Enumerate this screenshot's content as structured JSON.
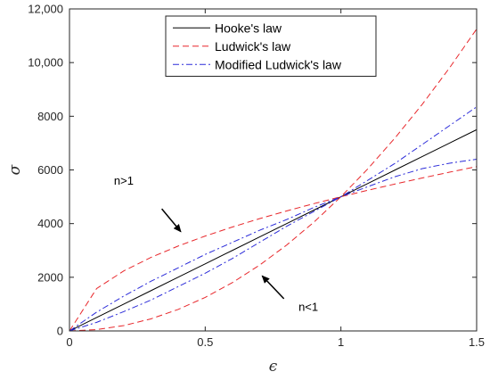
{
  "chart_data": {
    "type": "line",
    "xlabel": "ϵ",
    "ylabel": "σ",
    "xlim": [
      0,
      1.5
    ],
    "ylim": [
      0,
      12000
    ],
    "xticks": [
      0,
      0.5,
      1,
      1.5
    ],
    "xtick_labels": [
      "0",
      "0.5",
      "1",
      "1.5"
    ],
    "yticks": [
      0,
      2000,
      4000,
      6000,
      8000,
      10000,
      12000
    ],
    "ytick_labels": [
      "0",
      "2000",
      "4000",
      "6000",
      "8000",
      "10,000",
      "12,000"
    ],
    "grid": false,
    "legend_position": "top-center",
    "series": [
      {
        "name": "Hooke's law",
        "color": "#000000",
        "dash": "solid",
        "x": [
          0,
          0.1,
          0.2,
          0.3,
          0.4,
          0.5,
          0.6,
          0.7,
          0.8,
          0.9,
          1.0,
          1.1,
          1.2,
          1.3,
          1.4,
          1.5
        ],
        "y": [
          0,
          500,
          1000,
          1500,
          2000,
          2500,
          3000,
          3500,
          4000,
          4500,
          5000,
          5500,
          6000,
          6500,
          7000,
          7500
        ]
      },
      {
        "name": "Ludwick's law",
        "color": "#e8272b",
        "dash": "dashed",
        "x": [
          0,
          0.1,
          0.2,
          0.3,
          0.4,
          0.5,
          0.6,
          0.7,
          0.8,
          0.9,
          1.0,
          1.1,
          1.2,
          1.3,
          1.4,
          1.5
        ],
        "y": [
          0,
          1581,
          2236,
          2739,
          3162,
          3536,
          3873,
          4183,
          4472,
          4743,
          5000,
          5244,
          5477,
          5701,
          5916,
          6124
        ]
      },
      {
        "name": "",
        "color": "#e8272b",
        "dash": "dashed",
        "x": [
          0,
          0.1,
          0.2,
          0.3,
          0.4,
          0.5,
          0.6,
          0.7,
          0.8,
          0.9,
          1.0,
          1.1,
          1.2,
          1.3,
          1.4,
          1.5
        ],
        "y": [
          0,
          50,
          200,
          450,
          800,
          1250,
          1800,
          2450,
          3200,
          4050,
          5000,
          6050,
          7200,
          8450,
          9800,
          11250
        ]
      },
      {
        "name": "Modified Ludwick's law",
        "color": "#2b2bd9",
        "dash": "dashdot",
        "x": [
          0,
          0.1,
          0.2,
          0.3,
          0.4,
          0.5,
          0.6,
          0.7,
          0.8,
          0.9,
          1.0,
          1.1,
          1.2,
          1.3,
          1.4,
          1.5
        ],
        "y": [
          0,
          700,
          1300,
          1850,
          2350,
          2850,
          3300,
          3750,
          4150,
          4600,
          5000,
          5380,
          5750,
          6050,
          6250,
          6400
        ]
      },
      {
        "name": "",
        "color": "#2b2bd9",
        "dash": "dashdot",
        "x": [
          0,
          0.1,
          0.2,
          0.3,
          0.4,
          0.5,
          0.6,
          0.7,
          0.8,
          0.9,
          1.0,
          1.1,
          1.2,
          1.3,
          1.4,
          1.5
        ],
        "y": [
          0,
          320,
          720,
          1150,
          1650,
          2150,
          2700,
          3300,
          3900,
          4450,
          5000,
          5620,
          6250,
          6950,
          7650,
          8350
        ]
      }
    ],
    "annotations": [
      {
        "text": "n>1",
        "label_at": [
          0.2,
          5450
        ],
        "arrow_from": [
          0.34,
          4550
        ],
        "arrow_to": [
          0.41,
          3700
        ]
      },
      {
        "text": "n<1",
        "label_at": [
          0.88,
          750
        ],
        "arrow_from": [
          0.79,
          1200
        ],
        "arrow_to": [
          0.71,
          2050
        ]
      }
    ]
  }
}
